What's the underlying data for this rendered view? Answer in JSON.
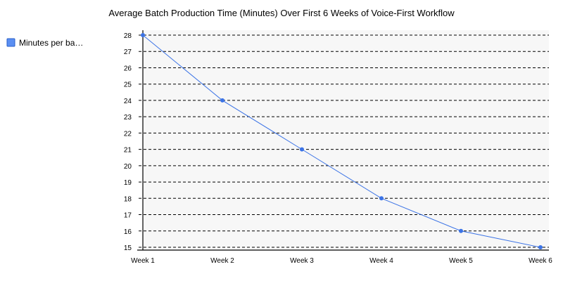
{
  "chart_data": {
    "type": "line",
    "title": "Average Batch Production Time (Minutes) Over First 6 Weeks of Voice-First Workflow",
    "categories": [
      "Week 1",
      "Week 2",
      "Week 3",
      "Week 4",
      "Week 5",
      "Week 6"
    ],
    "series": [
      {
        "name": "Minutes per ba…",
        "values": [
          28,
          24,
          21,
          18,
          16,
          15
        ],
        "color": "#3b73e6"
      }
    ],
    "ylim": [
      15,
      28
    ],
    "yticks": [
      "28",
      "27",
      "26",
      "25",
      "24",
      "23",
      "22",
      "21",
      "20",
      "19",
      "18",
      "17",
      "16",
      "15"
    ],
    "grid": true,
    "legend_position": "left",
    "colors": {
      "plot_background": "#f7f7f7",
      "legend_swatch": "#5b8ff2",
      "legend_swatch_border": "#2a5fc8"
    }
  }
}
